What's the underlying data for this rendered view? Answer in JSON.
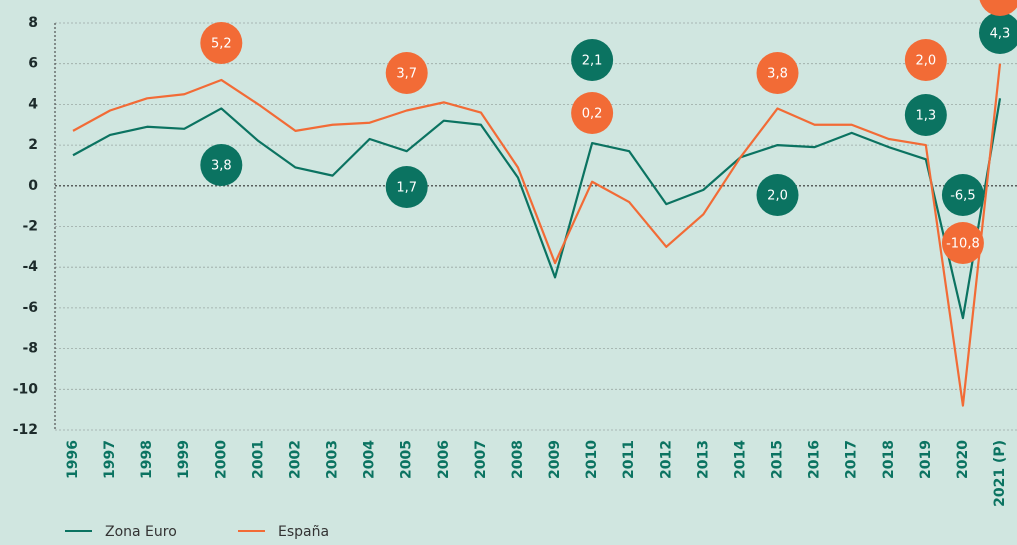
{
  "chart_data": {
    "type": "line",
    "categories": [
      "1996",
      "1997",
      "1998",
      "1999",
      "2000",
      "2001",
      "2002",
      "2003",
      "2004",
      "2005",
      "2006",
      "2007",
      "2008",
      "2009",
      "2010",
      "2011",
      "2012",
      "2013",
      "2014",
      "2015",
      "2016",
      "2017",
      "2018",
      "2019",
      "2020",
      "2021 (P)"
    ],
    "series": [
      {
        "name": "Zona Euro",
        "color": "#0b7361",
        "values": [
          1.5,
          2.5,
          2.9,
          2.8,
          3.8,
          2.2,
          0.9,
          0.5,
          2.3,
          1.7,
          3.2,
          3.0,
          0.4,
          -4.5,
          2.1,
          1.7,
          -0.9,
          -0.2,
          1.4,
          2.0,
          1.9,
          2.6,
          1.9,
          1.3,
          -6.5,
          4.3
        ],
        "value_labels": [
          null,
          null,
          null,
          null,
          "3,8",
          null,
          null,
          null,
          null,
          "1,7",
          null,
          null,
          null,
          null,
          "2,1",
          null,
          null,
          null,
          null,
          "2,0",
          null,
          null,
          null,
          "1,3",
          "-6,5",
          "4,3"
        ]
      },
      {
        "name": "España",
        "color": "#f26b36",
        "values": [
          2.7,
          3.7,
          4.3,
          4.5,
          5.2,
          4.0,
          2.7,
          3.0,
          3.1,
          3.7,
          4.1,
          3.6,
          0.9,
          -3.8,
          0.2,
          -0.8,
          -3.0,
          -1.4,
          1.4,
          3.8,
          3.0,
          3.0,
          2.3,
          2.0,
          -10.8,
          6.0
        ],
        "value_labels": [
          null,
          null,
          null,
          null,
          "5,2",
          null,
          null,
          null,
          null,
          "3,7",
          null,
          null,
          null,
          null,
          "0,2",
          null,
          null,
          null,
          null,
          "3,8",
          null,
          null,
          null,
          "2,0",
          "-10,8",
          null
        ]
      }
    ],
    "ylim": [
      -12,
      8
    ],
    "yticks": [
      8,
      6,
      4,
      2,
      0,
      -2,
      -4,
      -6,
      -8,
      -10,
      -12
    ],
    "grid": true,
    "legend": "bottom-left"
  }
}
